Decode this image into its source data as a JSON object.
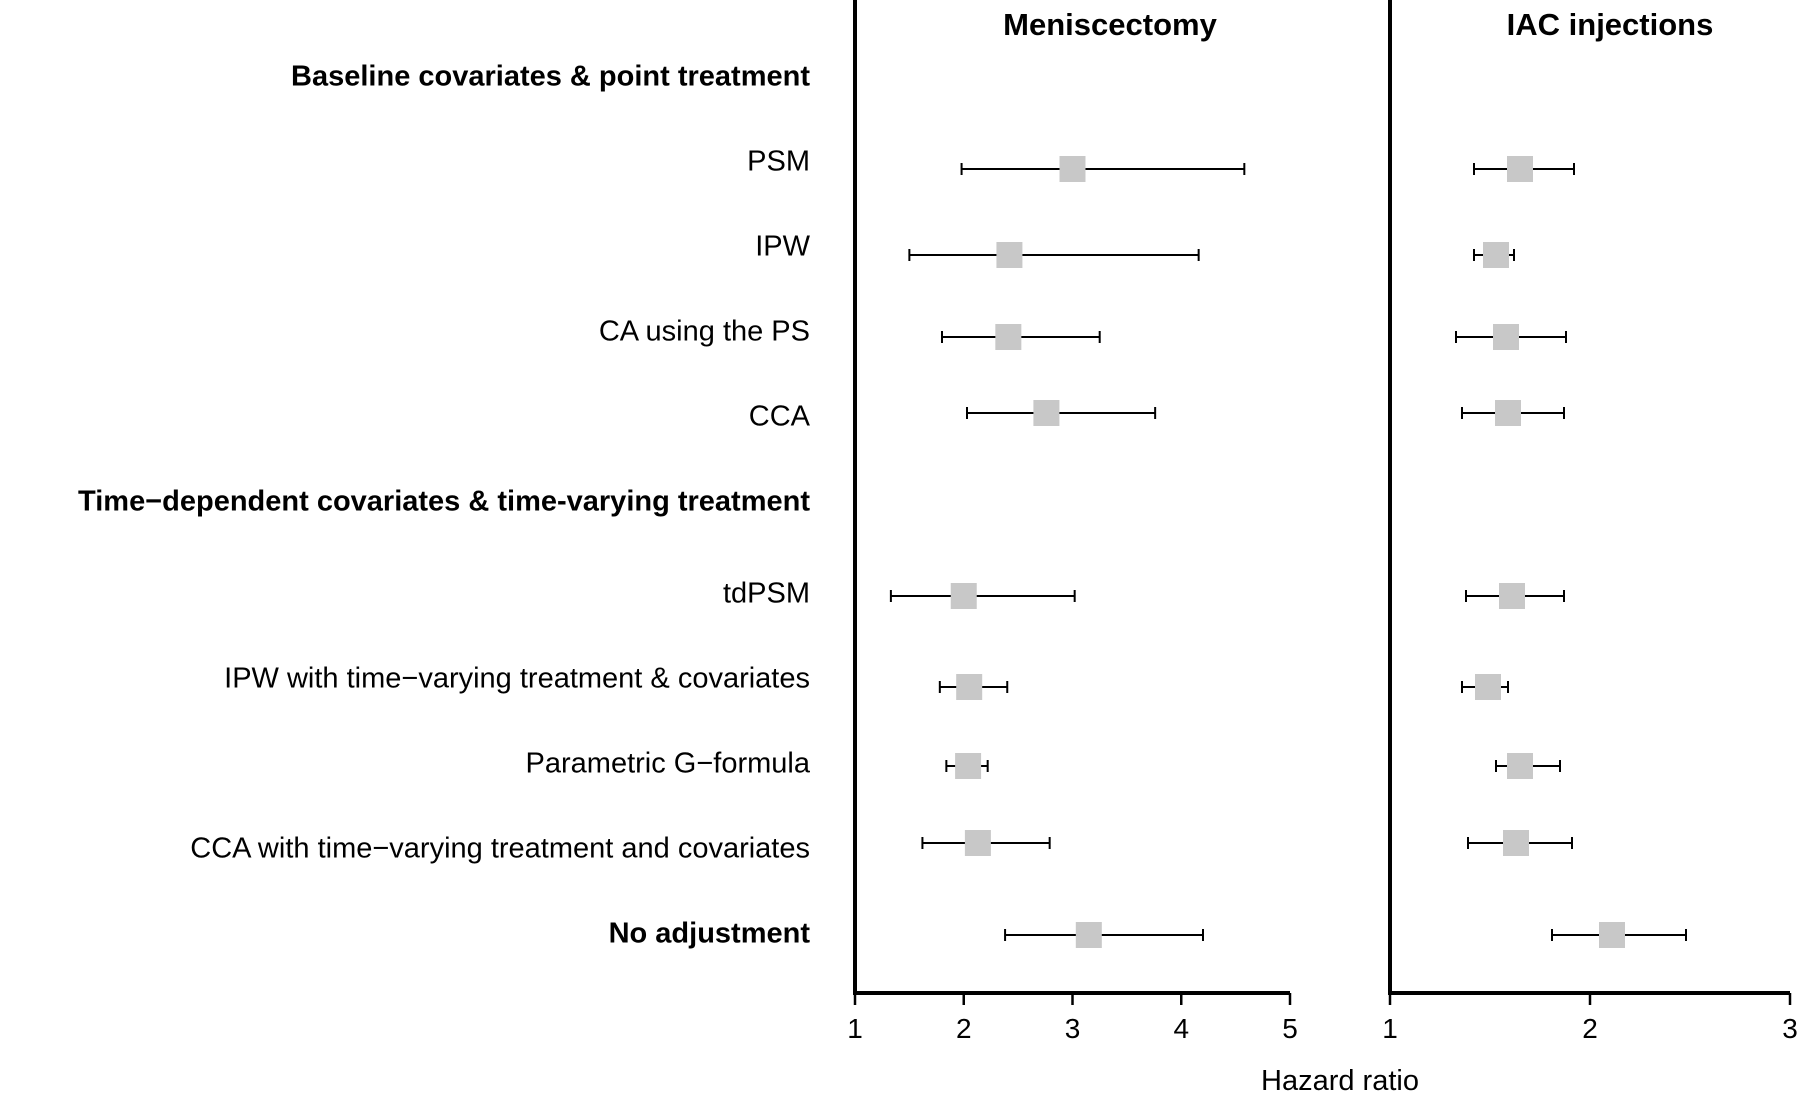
{
  "chart_data": {
    "type": "forest",
    "xlabel": "Hazard ratio",
    "rows": [
      {
        "label": "Baseline covariates & point treatment",
        "header": true
      },
      {
        "label": "PSM"
      },
      {
        "label": "IPW"
      },
      {
        "label": "CA using the PS"
      },
      {
        "label": "CCA"
      },
      {
        "label": "Time−dependent covariates & time-varying treatment",
        "header": true
      },
      {
        "label": "tdPSM"
      },
      {
        "label": "IPW with time−varying treatment & covariates"
      },
      {
        "label": "Parametric G−formula"
      },
      {
        "label": "CCA with time−varying treatment and covariates"
      },
      {
        "label": "No adjustment",
        "bold": true
      }
    ],
    "panels": [
      {
        "title": "Meniscectomy",
        "xlim": [
          1,
          5
        ],
        "ticks": [
          "1",
          "2",
          "3",
          "4",
          "5"
        ],
        "estimates": [
          null,
          {
            "est": 3.0,
            "lo": 1.98,
            "hi": 4.58
          },
          {
            "est": 2.42,
            "lo": 1.5,
            "hi": 4.16
          },
          {
            "est": 2.41,
            "lo": 1.8,
            "hi": 3.25
          },
          {
            "est": 2.76,
            "lo": 2.03,
            "hi": 3.76
          },
          null,
          {
            "est": 2.0,
            "lo": 1.33,
            "hi": 3.02
          },
          {
            "est": 2.05,
            "lo": 1.78,
            "hi": 2.4
          },
          {
            "est": 2.04,
            "lo": 1.84,
            "hi": 2.22
          },
          {
            "est": 2.13,
            "lo": 1.62,
            "hi": 2.79
          },
          {
            "est": 3.15,
            "lo": 2.38,
            "hi": 4.2
          }
        ]
      },
      {
        "title": "IAC injections",
        "xlim": [
          1,
          3
        ],
        "ticks": [
          "1",
          "2",
          "3"
        ],
        "estimates": [
          null,
          {
            "est": 1.65,
            "lo": 1.42,
            "hi": 1.92
          },
          {
            "est": 1.53,
            "lo": 1.42,
            "hi": 1.62
          },
          {
            "est": 1.58,
            "lo": 1.33,
            "hi": 1.88
          },
          {
            "est": 1.59,
            "lo": 1.36,
            "hi": 1.87
          },
          null,
          {
            "est": 1.61,
            "lo": 1.38,
            "hi": 1.87
          },
          {
            "est": 1.49,
            "lo": 1.36,
            "hi": 1.59
          },
          {
            "est": 1.65,
            "lo": 1.53,
            "hi": 1.85
          },
          {
            "est": 1.63,
            "lo": 1.39,
            "hi": 1.91
          },
          {
            "est": 2.11,
            "lo": 1.81,
            "hi": 2.48
          }
        ]
      }
    ],
    "colors": {
      "marker": "#c8c8c8",
      "line": "#000000"
    }
  }
}
